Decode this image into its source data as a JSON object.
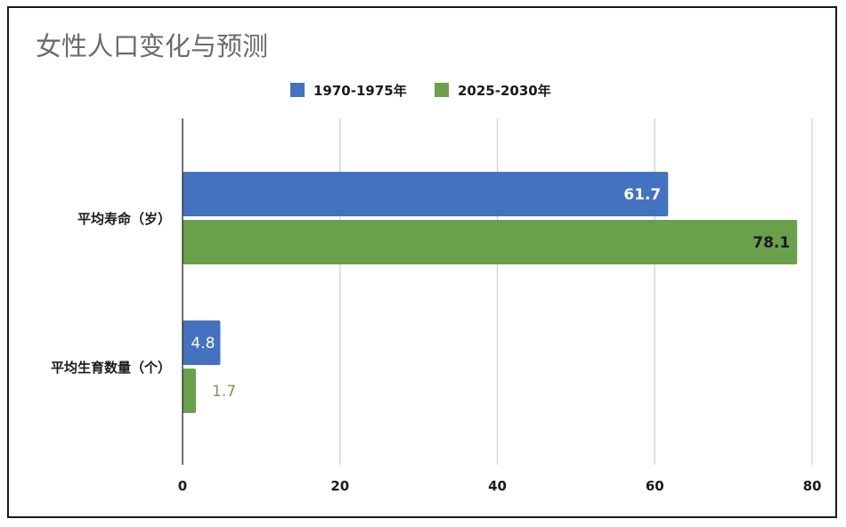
{
  "chart_data": {
    "type": "bar",
    "orientation": "horizontal",
    "title": "女性人口变化与预测",
    "categories": [
      "平均寿命（岁）",
      "平均生育数量（个）"
    ],
    "series": [
      {
        "name": "1970-1975年",
        "color": "#4372c0",
        "values": [
          61.7,
          4.8
        ],
        "labels": [
          "61.7",
          "4.8"
        ]
      },
      {
        "name": "2025-2030年",
        "color": "#6aa04c",
        "values": [
          78.1,
          1.7
        ],
        "labels": [
          "78.1",
          "1.7"
        ]
      }
    ],
    "xlim": [
      0,
      80
    ],
    "xticks": [
      "0",
      "20",
      "40",
      "60",
      "80"
    ],
    "grid": true,
    "legend_position": "top-center"
  }
}
